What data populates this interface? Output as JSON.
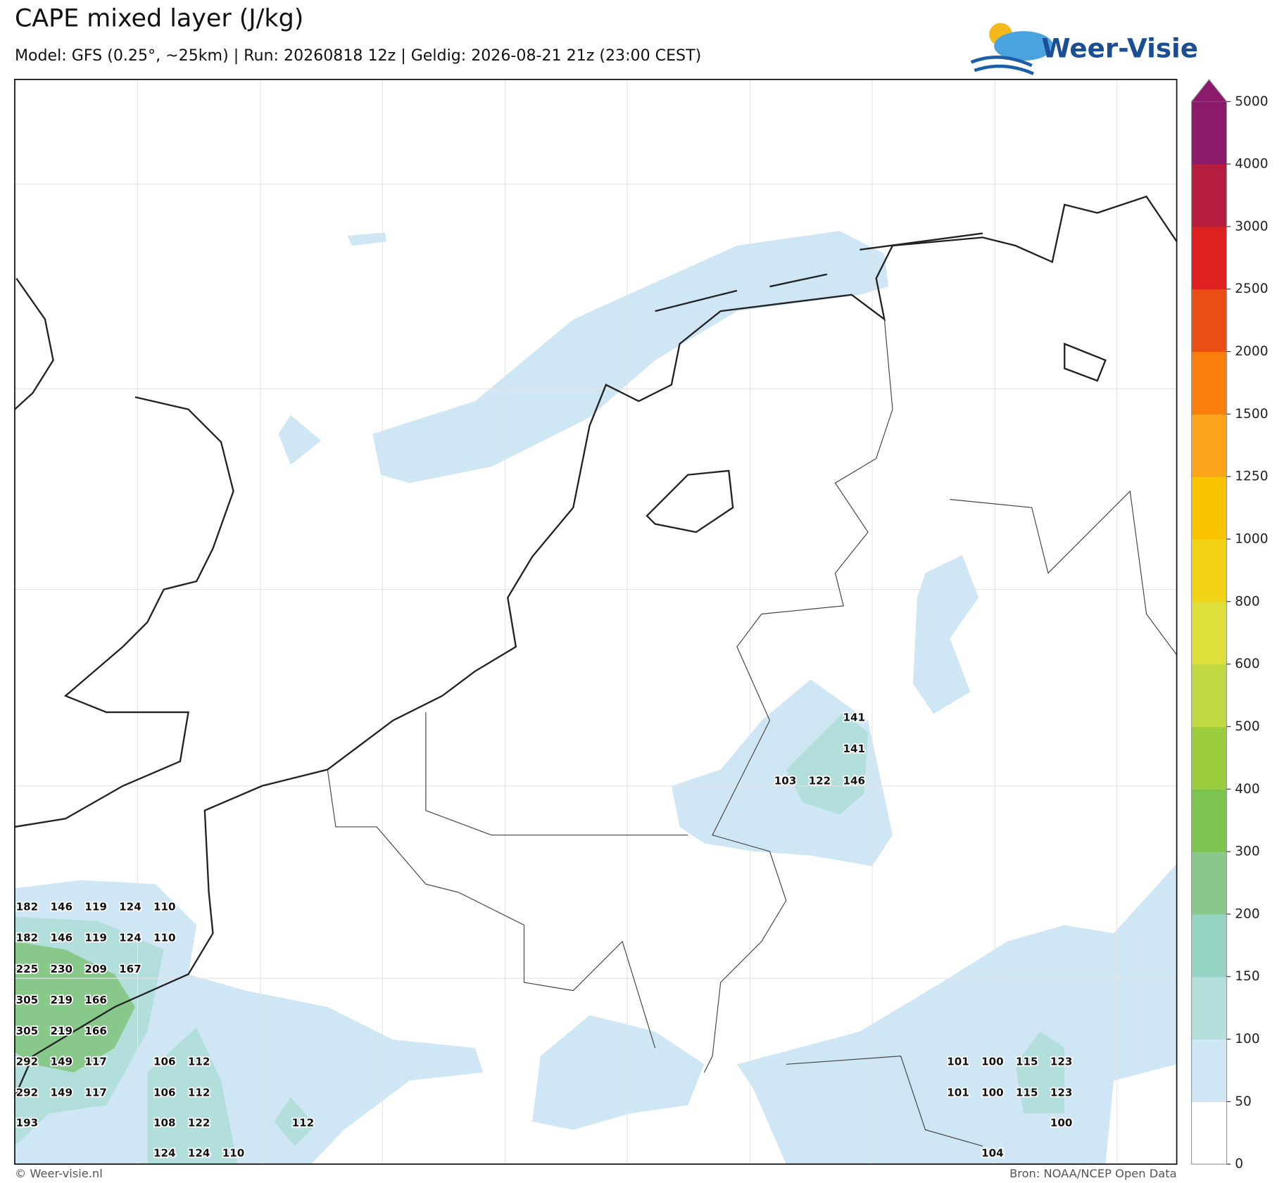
{
  "header": {
    "title": "CAPE mixed layer (J/kg)",
    "subtitle": "Model: GFS (0.25°, ~25km)  |  Run: 20260818 12z  |  Geldig: 2026-08-21 21z (23:00 CEST)"
  },
  "logo": {
    "text": "Weer-Visie"
  },
  "colorbar": {
    "ticks": [
      0,
      50,
      100,
      150,
      200,
      300,
      400,
      500,
      600,
      800,
      1000,
      1250,
      1500,
      2000,
      2500,
      3000,
      4000,
      5000
    ],
    "colors": [
      "#ffffff",
      "#cfe6f5",
      "#b2dfdb",
      "#95d3c5",
      "#88c98b",
      "#7bc44f",
      "#9ccd3e",
      "#c1da43",
      "#dde03a",
      "#f0d317",
      "#f9c300",
      "#fba61a",
      "#f97e0a",
      "#ea4e15",
      "#dd2121",
      "#b51c3e",
      "#8b1a6b"
    ]
  },
  "map": {
    "labels": [
      182,
      146,
      119,
      124,
      110,
      182,
      146,
      119,
      124,
      110,
      225,
      230,
      209,
      167,
      305,
      219,
      166,
      305,
      219,
      166,
      292,
      149,
      117,
      106,
      112,
      101,
      100,
      115,
      123,
      292,
      149,
      117,
      106,
      112,
      101,
      100,
      115,
      123,
      193,
      108,
      122,
      112,
      100,
      124,
      124,
      110,
      104,
      141,
      141,
      103,
      122,
      146
    ]
  },
  "footer": {
    "left": "© Weer-visie.nl",
    "right": "Bron: NOAA/NCEP Open Data"
  }
}
